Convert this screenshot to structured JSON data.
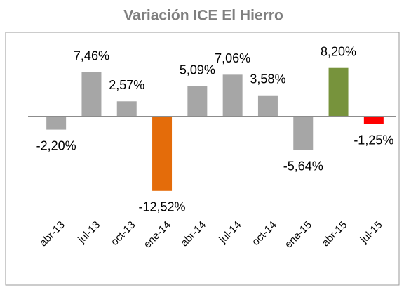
{
  "chart_data": {
    "type": "bar",
    "title": "Variación ICE El Hierro",
    "categories": [
      "abr-13",
      "jul-13",
      "oct-13",
      "ene-14",
      "abr-14",
      "jul-14",
      "oct-14",
      "ene-15",
      "abr-15",
      "jul-15"
    ],
    "values": [
      -2.2,
      7.46,
      2.57,
      -12.52,
      5.09,
      7.06,
      3.58,
      -5.64,
      8.2,
      -1.25
    ],
    "value_labels": [
      "-2,20%",
      "7,46%",
      "2,57%",
      "-12,52%",
      "5,09%",
      "7,06%",
      "3,58%",
      "-5,64%",
      "8,20%",
      "-1,25%"
    ],
    "colors": [
      "#a6a6a6",
      "#a6a6a6",
      "#a6a6a6",
      "#e46c0a",
      "#a6a6a6",
      "#a6a6a6",
      "#a6a6a6",
      "#a6a6a6",
      "#77933c",
      "#ff0000"
    ],
    "grid": false
  }
}
